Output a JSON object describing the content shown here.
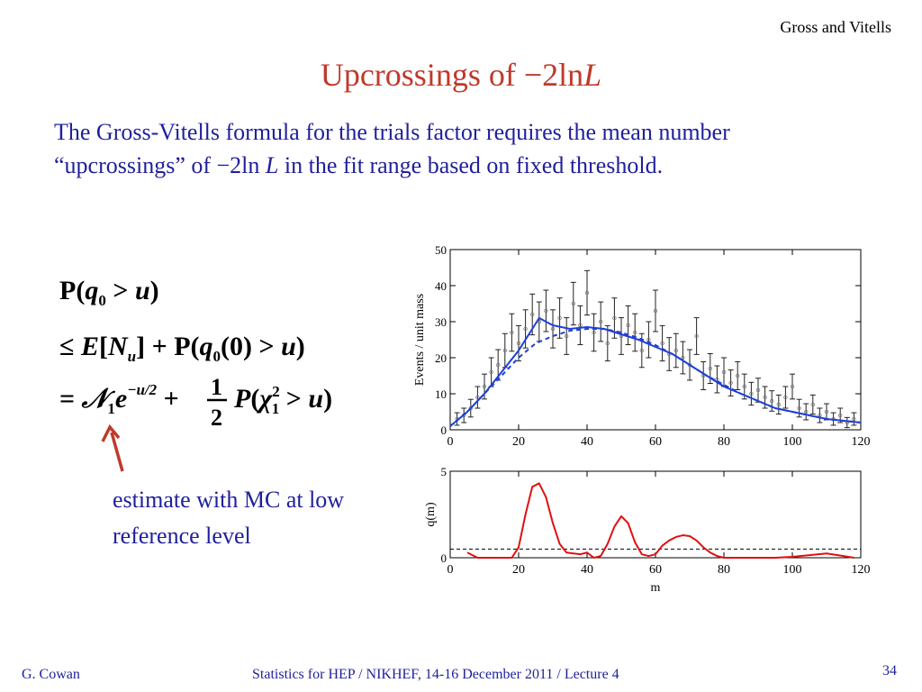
{
  "header": {
    "corner_label": "Gross and Vitells"
  },
  "slide": {
    "title_text": "Upcrossings of −2ln",
    "title_italic": "L",
    "body_part1": "The Gross-Vitells formula for the trials factor requires the mean number “upcrossings” of −2ln ",
    "body_italic": "L",
    "body_part2": " in the fit range based on fixed threshold.",
    "estimate_note": "estimate with MC at low reference level"
  },
  "formula": {
    "line1": "P(q₀ > u)",
    "line2": "≤ E[Nᵤ] + P(q₀(0) > u)",
    "line3": "= 𝒩₁e^(−u/2) + ½ P(χ₁² > u)"
  },
  "colors": {
    "title": "#c0392b",
    "text": "#1f1f9c",
    "fit_curve": "#1f3fd8",
    "q_curve": "#e01010",
    "arrow": "#c0392b"
  },
  "chart_data": [
    {
      "type": "scatter",
      "ylabel": "Events / unit mass",
      "xlim": [
        0,
        120
      ],
      "ylim": [
        0,
        50
      ],
      "x_ticks": [
        0,
        20,
        40,
        60,
        80,
        100,
        120
      ],
      "y_ticks": [
        0,
        10,
        20,
        30,
        40,
        50
      ],
      "series": [
        {
          "kind": "points_with_errors",
          "x": [
            2,
            4,
            6,
            8,
            10,
            12,
            14,
            16,
            18,
            20,
            22,
            24,
            26,
            28,
            30,
            32,
            34,
            36,
            38,
            40,
            42,
            44,
            46,
            48,
            50,
            52,
            54,
            56,
            58,
            60,
            62,
            64,
            66,
            68,
            70,
            72,
            74,
            76,
            78,
            80,
            82,
            84,
            86,
            88,
            90,
            92,
            94,
            96,
            98,
            100,
            102,
            104,
            106,
            108,
            110,
            112,
            114,
            116,
            118
          ],
          "y": [
            3,
            4,
            6,
            9,
            12,
            16,
            18,
            22,
            27,
            24,
            28,
            32,
            30,
            33,
            28,
            31,
            26,
            35,
            29,
            38,
            27,
            30,
            24,
            31,
            26,
            29,
            27,
            22,
            25,
            33,
            24,
            21,
            22,
            20,
            18,
            26,
            15,
            17,
            14,
            16,
            13,
            15,
            12,
            10,
            11,
            9,
            8,
            7,
            9,
            12,
            6,
            5,
            7,
            4,
            5,
            3,
            4,
            2,
            3
          ]
        },
        {
          "kind": "fit_curve_solid",
          "x": [
            0,
            5,
            10,
            15,
            20,
            24,
            26,
            28,
            30,
            35,
            40,
            45,
            50,
            55,
            60,
            65,
            70,
            75,
            80,
            85,
            90,
            95,
            100,
            105,
            110,
            115,
            120
          ],
          "y": [
            1,
            5,
            10,
            16,
            22,
            28,
            31,
            30,
            29,
            28,
            28.5,
            28,
            26.5,
            25,
            23,
            21,
            18,
            15,
            12,
            10,
            8,
            6,
            5,
            4,
            3,
            2.5,
            2
          ]
        },
        {
          "kind": "fit_curve_dashed",
          "x": [
            0,
            5,
            10,
            15,
            20,
            25,
            30,
            35,
            40,
            45,
            50,
            55,
            60,
            65,
            70,
            75,
            80,
            85,
            90,
            95,
            100,
            105,
            110,
            115,
            120
          ],
          "y": [
            1,
            5,
            10,
            15,
            20,
            24,
            26,
            27.5,
            28,
            28,
            27,
            25.5,
            23.5,
            21,
            18,
            15,
            12.5,
            10,
            8,
            6,
            5,
            4,
            3,
            2.5,
            2
          ]
        }
      ]
    },
    {
      "type": "line",
      "xlabel": "m",
      "ylabel": "q(m)",
      "xlim": [
        0,
        120
      ],
      "ylim": [
        0,
        5
      ],
      "x_ticks": [
        0,
        20,
        40,
        60,
        80,
        100,
        120
      ],
      "y_ticks": [
        0,
        5
      ],
      "threshold": 0.5,
      "series": [
        {
          "kind": "q_curve",
          "x": [
            5,
            8,
            10,
            14,
            18,
            20,
            22,
            24,
            26,
            28,
            30,
            32,
            34,
            38,
            40,
            42,
            44,
            46,
            48,
            50,
            52,
            54,
            56,
            58,
            60,
            62,
            64,
            66,
            68,
            70,
            72,
            74,
            76,
            78,
            80,
            85,
            90,
            95,
            100,
            105,
            110,
            115,
            118
          ],
          "y": [
            0.3,
            0,
            0,
            0,
            0,
            0.6,
            2.5,
            4.1,
            4.3,
            3.5,
            2.0,
            0.8,
            0.3,
            0.2,
            0.3,
            0,
            0.1,
            0.8,
            1.8,
            2.4,
            2.0,
            0.9,
            0.2,
            0.1,
            0.2,
            0.7,
            1.0,
            1.2,
            1.3,
            1.25,
            1.0,
            0.6,
            0.3,
            0.1,
            0,
            0,
            0,
            0,
            0.05,
            0.15,
            0.25,
            0.1,
            0
          ]
        }
      ]
    }
  ],
  "footer": {
    "author": "G. Cowan",
    "center": "Statistics for HEP / NIKHEF, 14-16 December  2011 / Lecture 4",
    "page": "34"
  }
}
